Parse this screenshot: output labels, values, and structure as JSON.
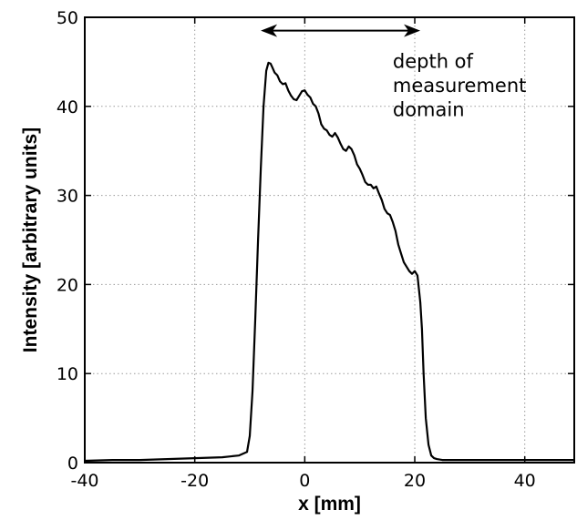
{
  "chart_data": {
    "type": "line",
    "xlabel": "x [mm]",
    "ylabel": "Intensity [arbitrary units]",
    "xlim": [
      -40,
      49
    ],
    "ylim": [
      0,
      50
    ],
    "x_ticks": [
      -40,
      -20,
      0,
      20,
      40
    ],
    "y_ticks": [
      0,
      10,
      20,
      30,
      40,
      50
    ],
    "grid": true,
    "annotation": {
      "lines": [
        "depth of",
        "measurement",
        "domain"
      ],
      "arrow_x_range": [
        -8,
        21
      ],
      "arrow_y": 48.5,
      "text_x": 16,
      "text_y": [
        44.3,
        41.6,
        38.9
      ]
    },
    "series": [
      {
        "x": [
          -40,
          -35,
          -30,
          -25,
          -20,
          -15,
          -12,
          -10.5,
          -10,
          -9.5,
          -9,
          -8.5,
          -8,
          -7.5,
          -7,
          -6.6,
          -6.2,
          -5.9,
          -5.5,
          -5,
          -4.5,
          -4,
          -3.5,
          -3,
          -2.5,
          -2,
          -1.5,
          -1,
          -0.5,
          0,
          0.5,
          1,
          1.5,
          2,
          2.5,
          3,
          3.5,
          4,
          4.5,
          5,
          5.5,
          6,
          6.5,
          7,
          7.5,
          8,
          8.5,
          9,
          9.5,
          10,
          10.5,
          11,
          11.5,
          12,
          12.5,
          13,
          13.5,
          14,
          14.5,
          15,
          15.5,
          16,
          16.5,
          17,
          17.5,
          18,
          18.5,
          19,
          19.5,
          20,
          20.5,
          21,
          21.3,
          21.6,
          22,
          22.5,
          23,
          23.5,
          24,
          25,
          30,
          35,
          40,
          45,
          49
        ],
        "y": [
          0.2,
          0.3,
          0.3,
          0.4,
          0.5,
          0.6,
          0.8,
          1.2,
          3,
          8,
          16,
          25,
          33,
          40,
          44,
          44.9,
          44.8,
          44.4,
          43.8,
          43.5,
          42.8,
          42.5,
          42.6,
          41.8,
          41.2,
          40.8,
          40.7,
          41.2,
          41.7,
          41.8,
          41.3,
          41,
          40.3,
          40,
          39.2,
          38,
          37.5,
          37.3,
          36.8,
          36.6,
          37,
          36.5,
          35.8,
          35.2,
          35,
          35.5,
          35.2,
          34.5,
          33.5,
          33,
          32.3,
          31.5,
          31.2,
          31.2,
          30.8,
          31,
          30.2,
          29.5,
          28.5,
          28,
          27.8,
          27,
          26,
          24.5,
          23.5,
          22.5,
          22,
          21.5,
          21.2,
          21.5,
          21,
          18,
          15,
          10,
          5,
          2,
          0.8,
          0.5,
          0.4,
          0.3,
          0.3,
          0.3,
          0.3,
          0.3,
          0.3
        ]
      }
    ]
  }
}
